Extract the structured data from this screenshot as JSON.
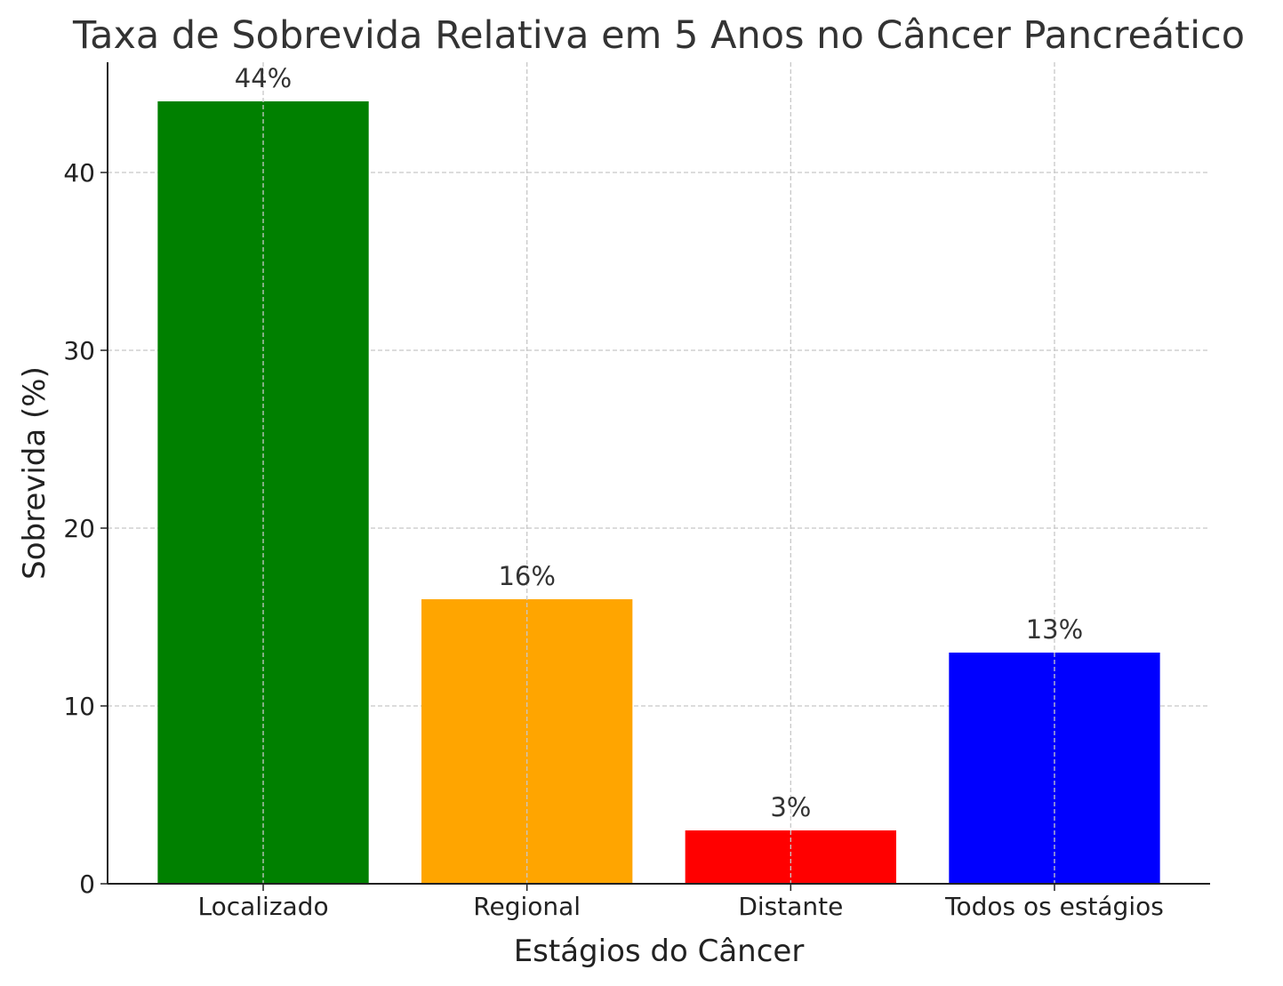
{
  "chart_data": {
    "type": "bar",
    "title": "Taxa de Sobrevida Relativa em 5 Anos no Câncer Pancreático",
    "xlabel": "Estágios do Câncer",
    "ylabel": "Sobrevida (%)",
    "categories": [
      "Localizado",
      "Regional",
      "Distante",
      "Todos os estágios"
    ],
    "values": [
      44,
      16,
      3,
      13
    ],
    "data_labels": [
      "44%",
      "16%",
      "3%",
      "13%"
    ],
    "colors": [
      "#008000",
      "#ffa500",
      "#ff0000",
      "#0000ff"
    ],
    "ylim": [
      0,
      46.2
    ],
    "yticks": [
      0,
      10,
      20,
      30,
      40
    ],
    "ytick_labels": [
      "0",
      "10",
      "20",
      "30",
      "40"
    ],
    "grid": true
  }
}
